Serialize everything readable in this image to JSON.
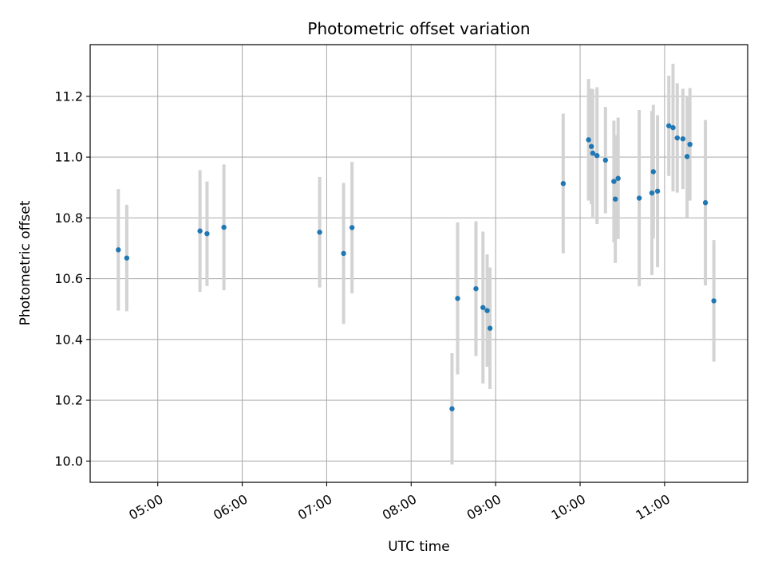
{
  "chart_data": {
    "type": "scatter",
    "title": "Photometric offset variation",
    "xlabel": "UTC time",
    "ylabel": "Photometric offset",
    "xlim": [
      "04:12",
      "11:59"
    ],
    "ylim": [
      9.93,
      11.37
    ],
    "x_ticks": [
      "05:00",
      "06:00",
      "07:00",
      "08:00",
      "09:00",
      "10:00",
      "11:00"
    ],
    "y_ticks": [
      10.0,
      10.2,
      10.4,
      10.6,
      10.8,
      11.0,
      11.2
    ],
    "grid": true,
    "legend": "none",
    "marker_color": "#1f77b4",
    "errorbar_color": "#d3d3d3",
    "points": [
      {
        "x": "04:32",
        "y": 10.695,
        "err": 0.2
      },
      {
        "x": "04:38",
        "y": 10.668,
        "err": 0.175
      },
      {
        "x": "05:30",
        "y": 10.757,
        "err": 0.2
      },
      {
        "x": "05:35",
        "y": 10.748,
        "err": 0.172
      },
      {
        "x": "05:47",
        "y": 10.769,
        "err": 0.207
      },
      {
        "x": "06:55",
        "y": 10.753,
        "err": 0.182
      },
      {
        "x": "07:12",
        "y": 10.683,
        "err": 0.232
      },
      {
        "x": "07:18",
        "y": 10.768,
        "err": 0.216
      },
      {
        "x": "08:29",
        "y": 10.172,
        "err": 0.183
      },
      {
        "x": "08:33",
        "y": 10.535,
        "err": 0.25
      },
      {
        "x": "08:46",
        "y": 10.567,
        "err": 0.222
      },
      {
        "x": "08:51",
        "y": 10.505,
        "err": 0.25
      },
      {
        "x": "08:54",
        "y": 10.495,
        "err": 0.185
      },
      {
        "x": "08:56",
        "y": 10.437,
        "err": 0.2
      },
      {
        "x": "09:48",
        "y": 10.913,
        "err": 0.23
      },
      {
        "x": "10:06",
        "y": 11.057,
        "err": 0.2
      },
      {
        "x": "10:08",
        "y": 11.035,
        "err": 0.19
      },
      {
        "x": "10:09",
        "y": 11.013,
        "err": 0.21
      },
      {
        "x": "10:12",
        "y": 11.005,
        "err": 0.225
      },
      {
        "x": "10:18",
        "y": 10.99,
        "err": 0.175
      },
      {
        "x": "10:24",
        "y": 10.92,
        "err": 0.2
      },
      {
        "x": "10:25",
        "y": 10.862,
        "err": 0.21
      },
      {
        "x": "10:27",
        "y": 10.93,
        "err": 0.2
      },
      {
        "x": "10:42",
        "y": 10.865,
        "err": 0.29
      },
      {
        "x": "10:51",
        "y": 10.882,
        "err": 0.27
      },
      {
        "x": "10:52",
        "y": 10.952,
        "err": 0.22
      },
      {
        "x": "10:55",
        "y": 10.888,
        "err": 0.25
      },
      {
        "x": "11:03",
        "y": 11.103,
        "err": 0.165
      },
      {
        "x": "11:06",
        "y": 11.097,
        "err": 0.21
      },
      {
        "x": "11:09",
        "y": 11.063,
        "err": 0.18
      },
      {
        "x": "11:13",
        "y": 11.06,
        "err": 0.165
      },
      {
        "x": "11:16",
        "y": 11.002,
        "err": 0.2
      },
      {
        "x": "11:18",
        "y": 11.042,
        "err": 0.185
      },
      {
        "x": "11:29",
        "y": 10.85,
        "err": 0.272
      },
      {
        "x": "11:35",
        "y": 10.527,
        "err": 0.2
      }
    ]
  }
}
